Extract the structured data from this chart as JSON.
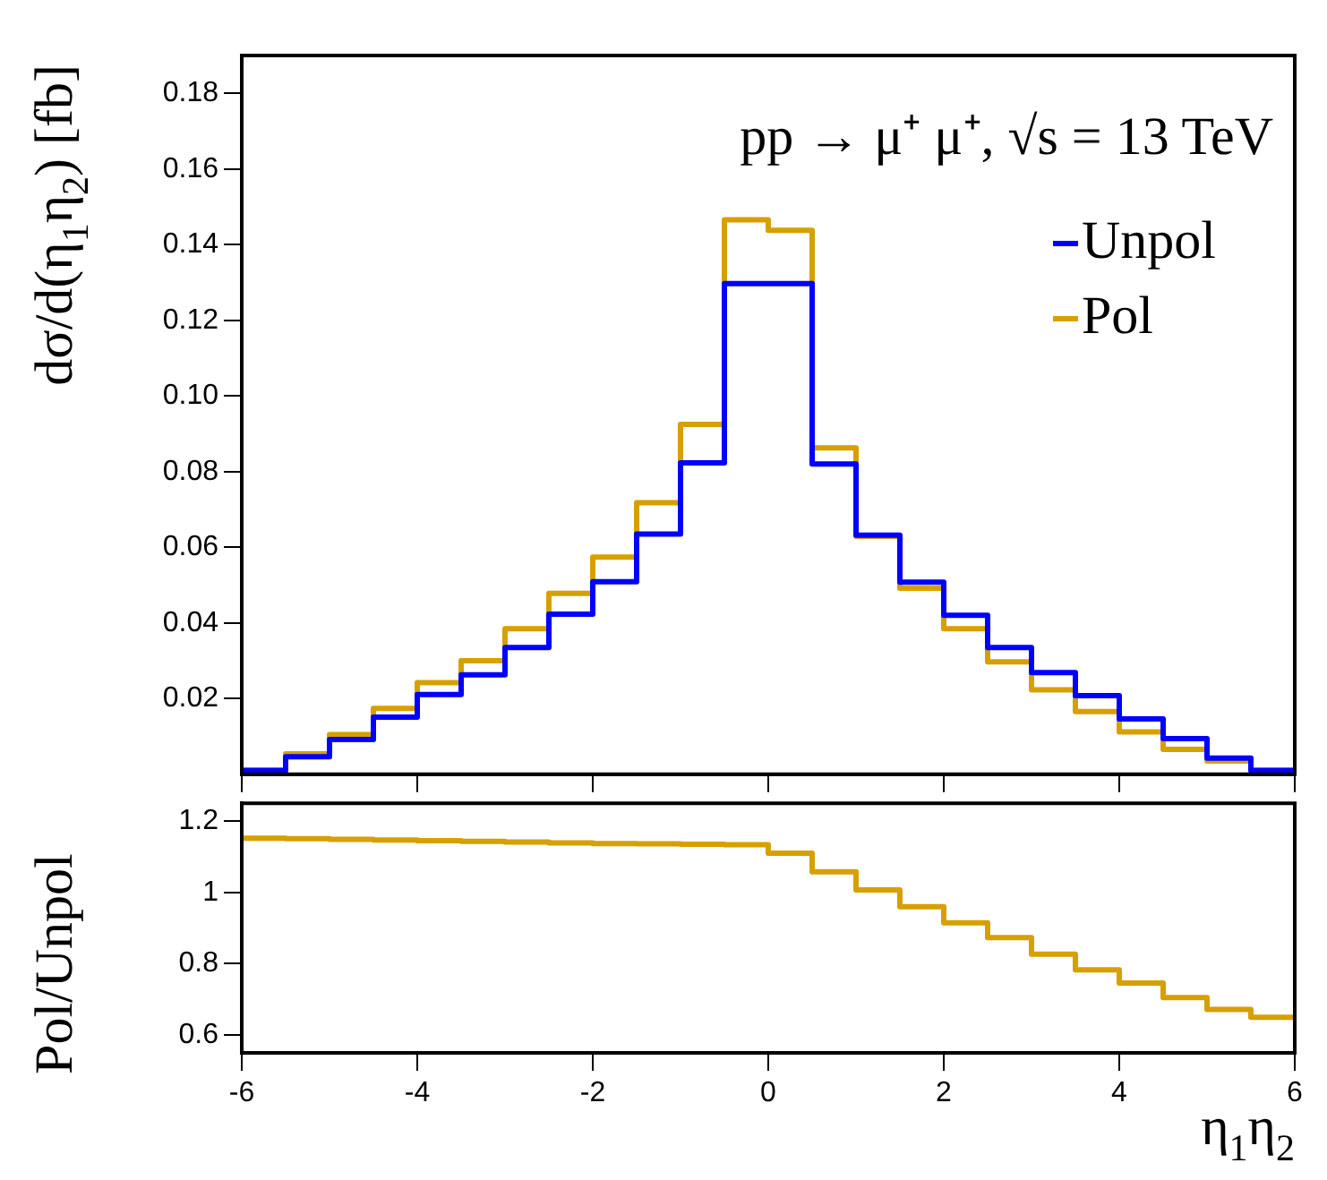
{
  "chart_data": [
    {
      "type": "histogram",
      "ylabel": "dσ/d(η$_{1}$η$_{2}$) [fb]",
      "annotations": [
        "pp → μ⁺ μ⁺, √s = 13 TeV"
      ],
      "bins": [
        -6,
        -5.5,
        -5,
        -4.5,
        -4,
        -3.5,
        -3,
        -2.5,
        -2,
        -1.5,
        -1,
        -0.5,
        0,
        0.5,
        1,
        1.5,
        2,
        2.5,
        3,
        3.5,
        4,
        4.5,
        5,
        5.5,
        6
      ],
      "series": [
        {
          "name": "Unpol",
          "color": "#0000ff",
          "values": [
            0.001,
            0.0046,
            0.0092,
            0.0151,
            0.0211,
            0.0263,
            0.0335,
            0.0423,
            0.0509,
            0.0635,
            0.0823,
            0.1297,
            0.1297,
            0.082,
            0.0632,
            0.0508,
            0.042,
            0.0335,
            0.0269,
            0.0208,
            0.0146,
            0.0094,
            0.0043,
            0.001
          ]
        },
        {
          "name": "Pol",
          "color": "#d6a000",
          "values": [
            0.001,
            0.0054,
            0.0105,
            0.0174,
            0.0242,
            0.03,
            0.0385,
            0.0478,
            0.0574,
            0.0718,
            0.0925,
            0.1466,
            0.1438,
            0.0863,
            0.0629,
            0.0492,
            0.0385,
            0.0297,
            0.0223,
            0.0166,
            0.0112,
            0.0066,
            0.0035,
            0.001
          ]
        }
      ],
      "xlim": [
        -6,
        6
      ],
      "xticks": [
        -6,
        -4,
        -2,
        0,
        2,
        4,
        6
      ],
      "ylim": [
        0,
        0.19
      ],
      "yticks": [
        {
          "value": 0.02,
          "label": "0.02"
        },
        {
          "value": 0.04,
          "label": "0.04"
        },
        {
          "value": 0.06,
          "label": "0.06"
        },
        {
          "value": 0.08,
          "label": "0.08"
        },
        {
          "value": 0.1,
          "label": "0.10"
        },
        {
          "value": 0.12,
          "label": "0.12"
        },
        {
          "value": 0.14,
          "label": "0.14"
        },
        {
          "value": 0.16,
          "label": "0.16"
        },
        {
          "value": 0.18,
          "label": "0.18"
        }
      ],
      "legend": "top right",
      "tick_labels": "y",
      "grid": false
    },
    {
      "type": "histogram",
      "ylabel": "Pol/Unpol",
      "xlabel": "η$_{1}$η$_{2}$",
      "bins": [
        -6,
        -5.5,
        -5,
        -4.5,
        -4,
        -3.5,
        -3,
        -2.5,
        -2,
        -1.5,
        -1,
        -0.5,
        0,
        0.5,
        1,
        1.5,
        2,
        2.5,
        3,
        3.5,
        4,
        4.5,
        5,
        5.5,
        6
      ],
      "values": [
        1.152,
        1.151,
        1.149,
        1.147,
        1.145,
        1.143,
        1.141,
        1.139,
        1.137,
        1.136,
        1.135,
        1.134,
        1.11,
        1.058,
        1.007,
        0.96,
        0.915,
        0.873,
        0.827,
        0.783,
        0.746,
        0.705,
        0.672,
        0.65
      ],
      "color": "#d6a000",
      "xlim": [
        -6,
        6
      ],
      "xticks": [
        -6,
        -4,
        -2,
        0,
        2,
        4,
        6
      ],
      "ylim": [
        0.55,
        1.25
      ],
      "yticks": [
        0.6,
        0.8,
        1,
        1.2
      ],
      "grid": false
    }
  ]
}
